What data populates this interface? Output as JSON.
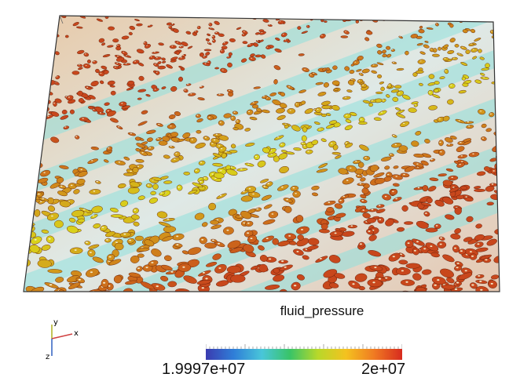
{
  "legend": {
    "title": "fluid_pressure",
    "min_label": "1.9997e+07",
    "max_label": "2e+07",
    "gradient_stops": [
      "#3b3bb0",
      "#2f7fd8",
      "#49c6d9",
      "#39c467",
      "#b8d82a",
      "#f4c21f",
      "#f07a22",
      "#d72b1f"
    ]
  },
  "orientation_axes": {
    "labels": [
      "y",
      "x",
      "z"
    ],
    "colors": {
      "x": "#d04040",
      "y": "#b0b020",
      "z": "#3060c0"
    }
  },
  "scene": {
    "background": "#ffffff",
    "outline_color": "#333333",
    "band_colors": {
      "low": "#8fe0dc",
      "mid": "#d9d41a",
      "high": "#c8471c",
      "highlight": "#f2e9c8"
    }
  }
}
